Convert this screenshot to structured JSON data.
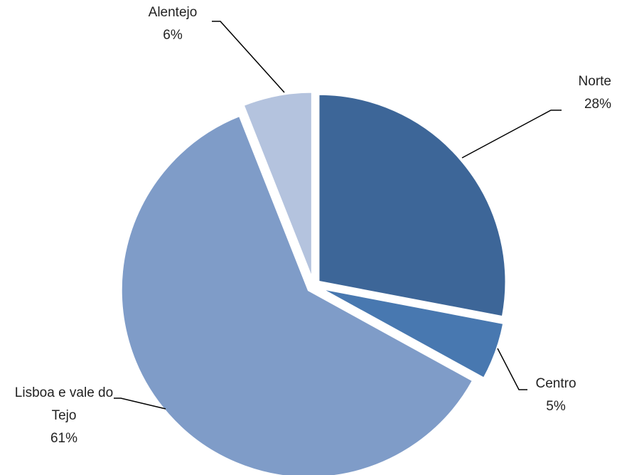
{
  "chart_data": {
    "type": "pie",
    "categories": [
      "Norte",
      "Centro",
      "Lisboa e vale do Tejo",
      "Alentejo"
    ],
    "values": [
      28,
      5,
      61,
      6
    ],
    "value_labels": [
      "28%",
      "5%",
      "61%",
      "6%"
    ],
    "colors": [
      "#3d6698",
      "#4878b0",
      "#7f9cc8",
      "#b4c3de"
    ]
  }
}
